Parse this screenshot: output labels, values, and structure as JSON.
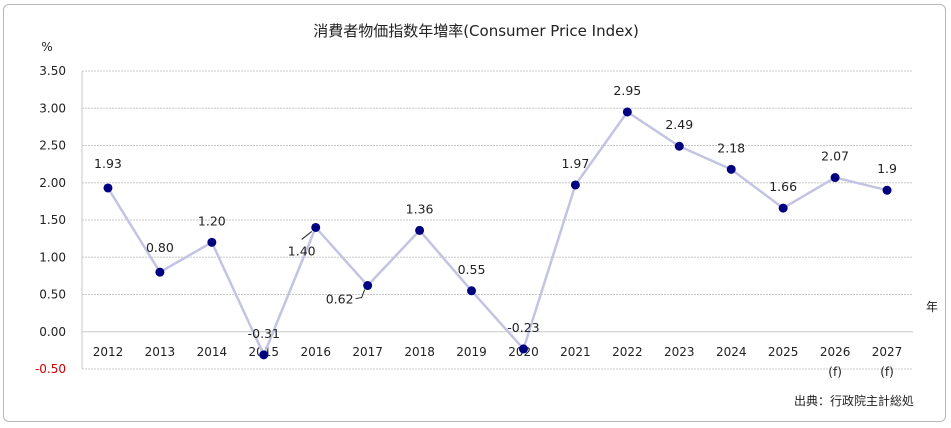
{
  "chart_data": {
    "type": "line",
    "title": "消費者物価指数年増率(Consumer Price Index)",
    "ylabel": "%",
    "xlabel": "年",
    "ylim": [
      -0.5,
      3.5
    ],
    "yticks": [
      "3.50",
      "3.00",
      "2.50",
      "2.00",
      "1.50",
      "1.00",
      "0.50",
      "0.00",
      "-0.50"
    ],
    "yticks_values": [
      3.5,
      3.0,
      2.5,
      2.0,
      1.5,
      1.0,
      0.5,
      0.0,
      -0.5
    ],
    "categories": [
      "2012",
      "2013",
      "2014",
      "2015",
      "2016",
      "2017",
      "2018",
      "2019",
      "2020",
      "2021",
      "2022",
      "2023",
      "2024",
      "2025",
      "2026",
      "2027"
    ],
    "forecast_marks": [
      "",
      "",
      "",
      "",
      "",
      "",
      "",
      "",
      "",
      "",
      "",
      "",
      "",
      "",
      "(f)",
      "(f)"
    ],
    "values": [
      1.93,
      0.8,
      1.2,
      -0.31,
      1.4,
      0.62,
      1.36,
      0.55,
      -0.23,
      1.97,
      2.95,
      2.49,
      2.18,
      1.66,
      2.07,
      1.9
    ],
    "data_labels": [
      "1.93",
      "0.80",
      "1.20",
      "-0.31",
      "1.40",
      "0.62",
      "1.36",
      "0.55",
      "-0.23",
      "1.97",
      "2.95",
      "2.49",
      "2.18",
      "1.66",
      "2.07",
      "1.9"
    ],
    "grid": true,
    "colors": {
      "line": "#c3c3e3",
      "marker": "#000080",
      "negative_tick": "#cc0000",
      "grid": "#c8c8c8"
    }
  },
  "source_note": "出典：行政院主計総処"
}
